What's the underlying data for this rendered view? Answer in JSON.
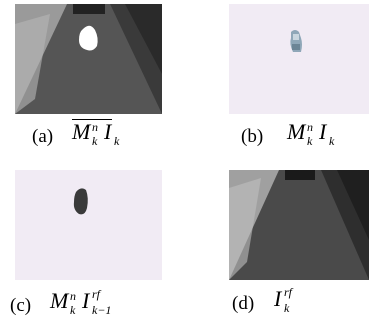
{
  "figure": {
    "panels": [
      {
        "id": "a",
        "label": "(a)",
        "main": "M",
        "sup": "n",
        "sub": "k",
        "main2": "I",
        "sub2": "k",
        "overline": true,
        "description_icon": "corridor-with-white-blob"
      },
      {
        "id": "b",
        "label": "(b)",
        "main": "M",
        "sup": "n",
        "sub": "k",
        "main2": "I",
        "sub2": "k",
        "overline": false,
        "description_icon": "pink-frame-with-person"
      },
      {
        "id": "c",
        "label": "(c)",
        "main": "M",
        "sup": "n",
        "sub": "k",
        "main2": "I",
        "sup2": "rf",
        "sub2": "k−1",
        "overline": false,
        "description_icon": "pink-frame-with-dark-blob"
      },
      {
        "id": "d",
        "label": "(d)",
        "main2": "I",
        "sup2": "rf",
        "sub2": "k",
        "overline": false,
        "description_icon": "empty-corridor"
      }
    ]
  }
}
